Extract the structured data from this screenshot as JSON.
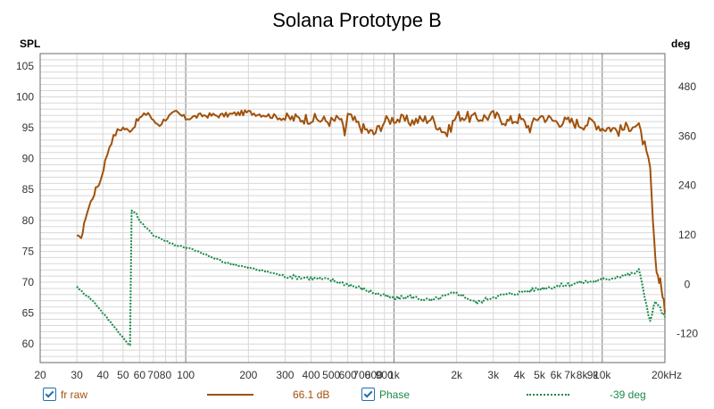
{
  "chart_data": {
    "type": "line",
    "title": "Solana Prototype B",
    "x_scale": "log",
    "xlim": [
      20,
      20000
    ],
    "x_ticks": [
      20,
      30,
      40,
      50,
      60,
      70,
      80,
      90,
      100,
      200,
      300,
      400,
      500,
      600,
      700,
      800,
      900,
      1000,
      2000,
      3000,
      4000,
      5000,
      6000,
      7000,
      8000,
      9000,
      10000,
      20000
    ],
    "x_tick_labels": [
      "20",
      "30",
      "40",
      "50",
      "60",
      "70",
      "80",
      "90",
      "100",
      "200",
      "300",
      "400",
      "500",
      "600",
      "700",
      "800",
      "900",
      "1k",
      "2k",
      "3k",
      "4k",
      "5k",
      "6k",
      "7k",
      "8k",
      "9k",
      "10k",
      "20kHz"
    ],
    "x_unlabeled_gridlines": [
      90
    ],
    "ylabel_left": "SPL",
    "ylim_left": [
      57,
      107
    ],
    "y_ticks_left": [
      60,
      65,
      70,
      75,
      80,
      85,
      90,
      95,
      100,
      105
    ],
    "ylabel_right": "deg",
    "ylim_right": [
      -190,
      560
    ],
    "y_ticks_right": [
      -120,
      0,
      120,
      240,
      360,
      480
    ],
    "grid": true,
    "series": [
      {
        "name": "fr raw",
        "axis": "left",
        "color": "#a0520c",
        "style": "solid",
        "legend_value": "66.1 dB",
        "points": [
          [
            30,
            77.5
          ],
          [
            31,
            77
          ],
          [
            32,
            78
          ],
          [
            33,
            80.5
          ],
          [
            35,
            83
          ],
          [
            37,
            85
          ],
          [
            39,
            86.5
          ],
          [
            41,
            89.5
          ],
          [
            43,
            92
          ],
          [
            45,
            93.5
          ],
          [
            47,
            94.5
          ],
          [
            50,
            95
          ],
          [
            53,
            94.5
          ],
          [
            56,
            95
          ],
          [
            58,
            96
          ],
          [
            60,
            96.5
          ],
          [
            63,
            97
          ],
          [
            66,
            97.5
          ],
          [
            70,
            96
          ],
          [
            75,
            95.5
          ],
          [
            80,
            96.5
          ],
          [
            90,
            97.5
          ],
          [
            100,
            96.5
          ],
          [
            120,
            97
          ],
          [
            150,
            97
          ],
          [
            200,
            97.5
          ],
          [
            250,
            97
          ],
          [
            300,
            96.5
          ],
          [
            400,
            96.5
          ],
          [
            500,
            96
          ],
          [
            550,
            96.5
          ],
          [
            580,
            94
          ],
          [
            600,
            97
          ],
          [
            700,
            95
          ],
          [
            800,
            94
          ],
          [
            900,
            96
          ],
          [
            1000,
            96.5
          ],
          [
            1200,
            96
          ],
          [
            1500,
            96.5
          ],
          [
            1800,
            94
          ],
          [
            2000,
            97
          ],
          [
            2500,
            96.5
          ],
          [
            3000,
            97
          ],
          [
            3500,
            96
          ],
          [
            4000,
            96.5
          ],
          [
            4500,
            95
          ],
          [
            5000,
            97
          ],
          [
            6000,
            96
          ],
          [
            7000,
            96
          ],
          [
            8000,
            95.5
          ],
          [
            9000,
            96
          ],
          [
            10000,
            95
          ],
          [
            11000,
            95
          ],
          [
            12000,
            94.5
          ],
          [
            13000,
            95
          ],
          [
            14000,
            95.5
          ],
          [
            15000,
            95
          ],
          [
            16000,
            92
          ],
          [
            17000,
            88
          ],
          [
            17500,
            80
          ],
          [
            18000,
            73
          ],
          [
            18500,
            71
          ],
          [
            19000,
            70.5
          ],
          [
            19500,
            68
          ],
          [
            20000,
            65
          ]
        ],
        "fluctuation": 0.7
      },
      {
        "name": "Phase",
        "axis": "right",
        "color": "#1a8a4a",
        "style": "dotted",
        "legend_value": "-39 deg",
        "points": [
          [
            30,
            -5
          ],
          [
            32,
            -20
          ],
          [
            35,
            -35
          ],
          [
            38,
            -55
          ],
          [
            40,
            -70
          ],
          [
            45,
            -100
          ],
          [
            50,
            -130
          ],
          [
            54,
            -150
          ],
          [
            55,
            180
          ],
          [
            58,
            170
          ],
          [
            60,
            155
          ],
          [
            65,
            135
          ],
          [
            70,
            120
          ],
          [
            80,
            105
          ],
          [
            90,
            95
          ],
          [
            100,
            90
          ],
          [
            120,
            75
          ],
          [
            150,
            55
          ],
          [
            200,
            40
          ],
          [
            250,
            30
          ],
          [
            300,
            20
          ],
          [
            400,
            15
          ],
          [
            500,
            10
          ],
          [
            600,
            0
          ],
          [
            700,
            -10
          ],
          [
            800,
            -20
          ],
          [
            1000,
            -35
          ],
          [
            1200,
            -30
          ],
          [
            1500,
            -40
          ],
          [
            2000,
            -20
          ],
          [
            2500,
            -45
          ],
          [
            3000,
            -30
          ],
          [
            4000,
            -20
          ],
          [
            5000,
            -10
          ],
          [
            6000,
            -5
          ],
          [
            7000,
            0
          ],
          [
            8000,
            5
          ],
          [
            10000,
            10
          ],
          [
            12000,
            20
          ],
          [
            14000,
            25
          ],
          [
            15000,
            35
          ],
          [
            16000,
            -30
          ],
          [
            17000,
            -90
          ],
          [
            18000,
            -40
          ],
          [
            19000,
            -60
          ],
          [
            20000,
            -80
          ]
        ],
        "fluctuation": 4
      }
    ]
  },
  "legend": {
    "items": [
      {
        "name": "fr raw",
        "value": "66.1 dB",
        "color": "#a0520c"
      },
      {
        "name": "Phase",
        "value": "-39 deg",
        "color": "#1a8a4a"
      }
    ]
  }
}
